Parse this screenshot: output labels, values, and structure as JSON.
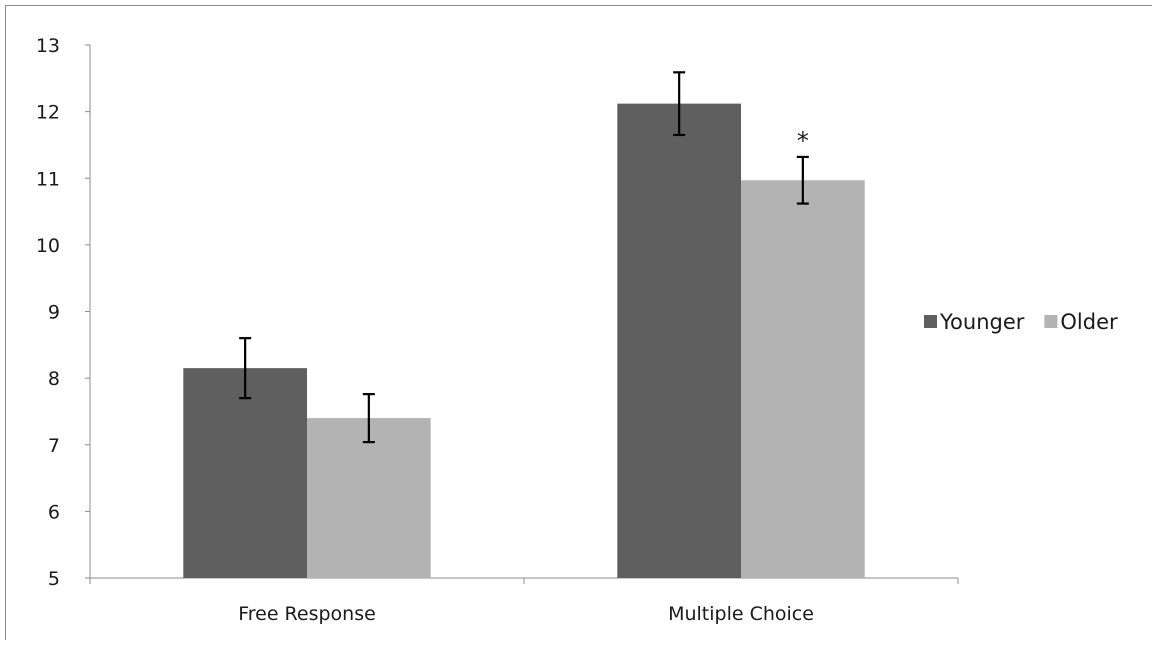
{
  "chart_data": {
    "type": "bar",
    "title": "",
    "xlabel": "",
    "ylabel": "",
    "categories": [
      "Free Response",
      "Multiple Choice"
    ],
    "series": [
      {
        "name": "Younger",
        "color": "#5f5f5f",
        "values": [
          8.15,
          12.12
        ],
        "error": [
          0.45,
          0.47
        ]
      },
      {
        "name": "Older",
        "color": "#b3b3b3",
        "values": [
          7.4,
          10.97
        ],
        "error": [
          0.36,
          0.35
        ]
      }
    ],
    "ylim": [
      5,
      13
    ],
    "yticks": [
      "5",
      "6",
      "7",
      "8",
      "9",
      "10",
      "11",
      "12",
      "13"
    ],
    "annotations": [
      {
        "text": "*",
        "category": "Multiple Choice",
        "series": "Older"
      }
    ],
    "grid": false,
    "legend_position": "right"
  }
}
